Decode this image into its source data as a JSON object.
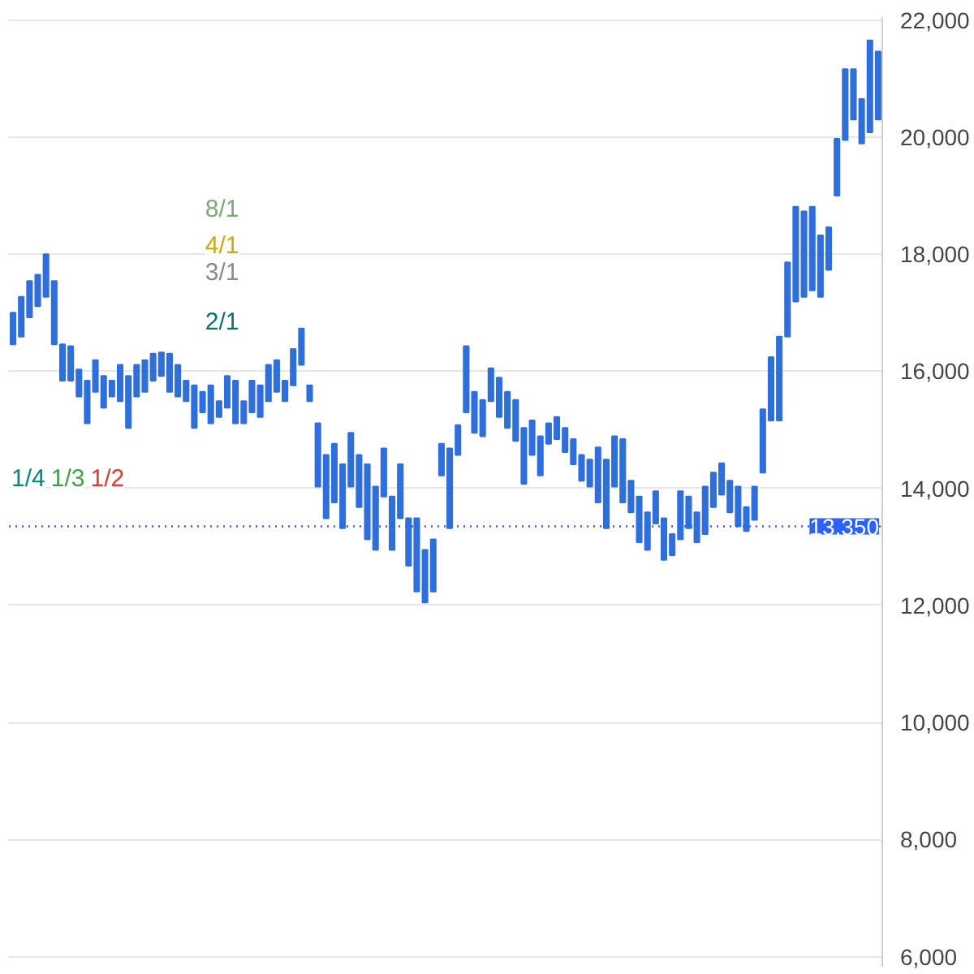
{
  "chart_data": {
    "type": "candlestick",
    "categories": [
      null,
      null,
      null,
      null,
      null,
      null,
      null,
      null,
      null,
      null,
      null,
      null,
      null,
      null,
      null,
      null,
      null,
      null,
      null,
      null,
      null,
      null,
      null,
      null,
      null,
      null,
      null,
      null,
      null,
      null,
      null,
      null,
      null,
      null,
      null,
      null,
      null,
      null,
      null,
      null,
      null,
      null,
      null,
      null,
      null,
      null,
      null,
      null,
      null,
      null,
      null,
      null,
      null,
      null,
      null,
      null,
      null,
      null,
      null,
      null,
      null,
      null,
      null,
      null,
      null,
      null,
      null,
      null,
      null,
      null,
      null,
      null,
      null,
      null,
      null,
      null,
      null,
      null,
      null,
      null,
      null,
      null,
      null,
      null,
      null,
      null,
      null,
      null,
      null,
      null,
      null,
      null,
      null,
      null,
      null,
      null,
      null,
      null,
      null,
      null,
      null,
      null,
      null,
      null,
      null,
      null
    ],
    "ohlc": [
      [
        16460,
        17000,
        16460,
        17000
      ],
      [
        16590,
        17270,
        16590,
        17270
      ],
      [
        16920,
        17540,
        16920,
        17540
      ],
      [
        17110,
        17650,
        17110,
        17650
      ],
      [
        17270,
        18000,
        17270,
        18000
      ],
      [
        16460,
        17540,
        16460,
        17540
      ],
      [
        15840,
        16460,
        15840,
        16460
      ],
      [
        15840,
        16430,
        15840,
        16430
      ],
      [
        15570,
        16030,
        15570,
        16030
      ],
      [
        15110,
        15840,
        15110,
        15840
      ],
      [
        15650,
        16190,
        15650,
        16190
      ],
      [
        15380,
        15920,
        15380,
        15920
      ],
      [
        15570,
        15840,
        15570,
        15840
      ],
      [
        15490,
        16110,
        15490,
        16110
      ],
      [
        15030,
        15920,
        15030,
        15920
      ],
      [
        15570,
        16110,
        15570,
        16110
      ],
      [
        15650,
        16190,
        15650,
        16190
      ],
      [
        15840,
        16300,
        15840,
        16300
      ],
      [
        15920,
        16320,
        15920,
        16320
      ],
      [
        15650,
        16300,
        15650,
        16300
      ],
      [
        15570,
        16110,
        15570,
        16110
      ],
      [
        15490,
        15840,
        15490,
        15840
      ],
      [
        15030,
        15760,
        15030,
        15760
      ],
      [
        15300,
        15650,
        15300,
        15650
      ],
      [
        15110,
        15760,
        15110,
        15760
      ],
      [
        15220,
        15490,
        15220,
        15490
      ],
      [
        15380,
        15920,
        15380,
        15920
      ],
      [
        15110,
        15840,
        15110,
        15840
      ],
      [
        15110,
        15490,
        15110,
        15490
      ],
      [
        15300,
        15840,
        15300,
        15840
      ],
      [
        15220,
        15760,
        15220,
        15760
      ],
      [
        15490,
        16110,
        15490,
        16110
      ],
      [
        15650,
        16190,
        15650,
        16190
      ],
      [
        15490,
        15840,
        15490,
        15840
      ],
      [
        15760,
        16380,
        15760,
        16380
      ],
      [
        16110,
        16730,
        16110,
        16730
      ],
      [
        15490,
        15760,
        15490,
        15760
      ],
      [
        14030,
        15110,
        14030,
        15110
      ],
      [
        13490,
        14570,
        13490,
        14570
      ],
      [
        13760,
        14760,
        13760,
        14760
      ],
      [
        13320,
        14410,
        13320,
        14410
      ],
      [
        14030,
        14950,
        14030,
        14950
      ],
      [
        13680,
        14570,
        13680,
        14570
      ],
      [
        13130,
        14410,
        13130,
        14410
      ],
      [
        12950,
        14030,
        12950,
        14030
      ],
      [
        13860,
        14680,
        13860,
        14680
      ],
      [
        12950,
        13860,
        12950,
        13860
      ],
      [
        13490,
        14410,
        13490,
        14410
      ],
      [
        12680,
        13490,
        12680,
        13490
      ],
      [
        12240,
        13490,
        12240,
        13490
      ],
      [
        12050,
        12950,
        12050,
        12950
      ],
      [
        12240,
        13130,
        12240,
        13130
      ],
      [
        14220,
        14760,
        14220,
        14760
      ],
      [
        13320,
        14680,
        13320,
        14680
      ],
      [
        14570,
        15080,
        14570,
        15080
      ],
      [
        15300,
        16430,
        15300,
        16430
      ],
      [
        14950,
        15650,
        14950,
        15650
      ],
      [
        14890,
        15510,
        14890,
        15510
      ],
      [
        15490,
        16050,
        15490,
        16050
      ],
      [
        15220,
        15890,
        15220,
        15890
      ],
      [
        15030,
        15650,
        15030,
        15650
      ],
      [
        14810,
        15510,
        14810,
        15510
      ],
      [
        14080,
        15030,
        14080,
        15030
      ],
      [
        14570,
        15160,
        14570,
        15160
      ],
      [
        14220,
        14890,
        14220,
        14890
      ],
      [
        14760,
        15110,
        14760,
        15110
      ],
      [
        14840,
        15220,
        14840,
        15220
      ],
      [
        14620,
        15030,
        14620,
        15030
      ],
      [
        14410,
        14840,
        14410,
        14840
      ],
      [
        14130,
        14570,
        14130,
        14570
      ],
      [
        14030,
        14490,
        14030,
        14490
      ],
      [
        13760,
        14700,
        13760,
        14700
      ],
      [
        13320,
        14490,
        13320,
        14490
      ],
      [
        14030,
        14890,
        14030,
        14890
      ],
      [
        13760,
        14840,
        13760,
        14840
      ],
      [
        13590,
        14130,
        13590,
        14130
      ],
      [
        13080,
        13860,
        13080,
        13860
      ],
      [
        12950,
        13590,
        12950,
        13590
      ],
      [
        13400,
        13950,
        13400,
        13950
      ],
      [
        12780,
        13490,
        12780,
        13490
      ],
      [
        12860,
        13220,
        12860,
        13220
      ],
      [
        13130,
        13950,
        13130,
        13950
      ],
      [
        13320,
        13860,
        13320,
        13860
      ],
      [
        13080,
        13590,
        13080,
        13590
      ],
      [
        13220,
        14030,
        13220,
        14030
      ],
      [
        13680,
        14270,
        13680,
        14270
      ],
      [
        13890,
        14430,
        13890,
        14430
      ],
      [
        13590,
        14130,
        13590,
        14130
      ],
      [
        13350,
        14030,
        13350,
        14030
      ],
      [
        13270,
        13680,
        13270,
        13680
      ],
      [
        13460,
        14030,
        13460,
        14030
      ],
      [
        14270,
        15350,
        14270,
        15350
      ],
      [
        15160,
        16240,
        15160,
        16240
      ],
      [
        15160,
        16590,
        15160,
        16590
      ],
      [
        16590,
        17860,
        16590,
        17860
      ],
      [
        17190,
        18810,
        17190,
        18810
      ],
      [
        17270,
        18730,
        17270,
        18730
      ],
      [
        17380,
        18810,
        17380,
        18810
      ],
      [
        17270,
        18320,
        17270,
        18320
      ],
      [
        17730,
        18460,
        17730,
        18460
      ],
      [
        19000,
        19970,
        19000,
        19970
      ],
      [
        19950,
        21160,
        19950,
        21160
      ],
      [
        20300,
        21160,
        20300,
        21160
      ],
      [
        19890,
        20650,
        19890,
        20650
      ],
      [
        20080,
        21650,
        20080,
        21650
      ],
      [
        20300,
        21460,
        20300,
        21460
      ]
    ],
    "color": "#2f6fdc",
    "annotations": [
      {
        "text": "8/1",
        "y": 18760
      },
      {
        "text": "4/1",
        "y": 18140
      },
      {
        "text": "3/1",
        "y": 17680
      },
      {
        "text": "2/1",
        "y": 16840
      },
      {
        "text": "1/4",
        "y": 14160
      },
      {
        "text": "1/3",
        "y": 14160
      },
      {
        "text": "1/2",
        "y": 14160
      }
    ],
    "ref_lines": [
      {
        "axis": "y",
        "value": 13350,
        "label": "13,350",
        "color": "#2962ff",
        "line_style": "dotted"
      }
    ],
    "ylim": [
      5830,
      22050
    ],
    "yticks": [
      {
        "value": 6000,
        "label": "6,000"
      },
      {
        "value": 8000,
        "label": "8,000"
      },
      {
        "value": 10000,
        "label": "10,000"
      },
      {
        "value": 12000,
        "label": "12,000"
      },
      {
        "value": 14000,
        "label": "14,000"
      },
      {
        "value": 16000,
        "label": "16,000"
      },
      {
        "value": 18000,
        "label": "18,000"
      },
      {
        "value": 20000,
        "label": "20,000"
      },
      {
        "value": 22000,
        "label": "22,000"
      }
    ],
    "tick_labels": "y",
    "grid": "y"
  }
}
